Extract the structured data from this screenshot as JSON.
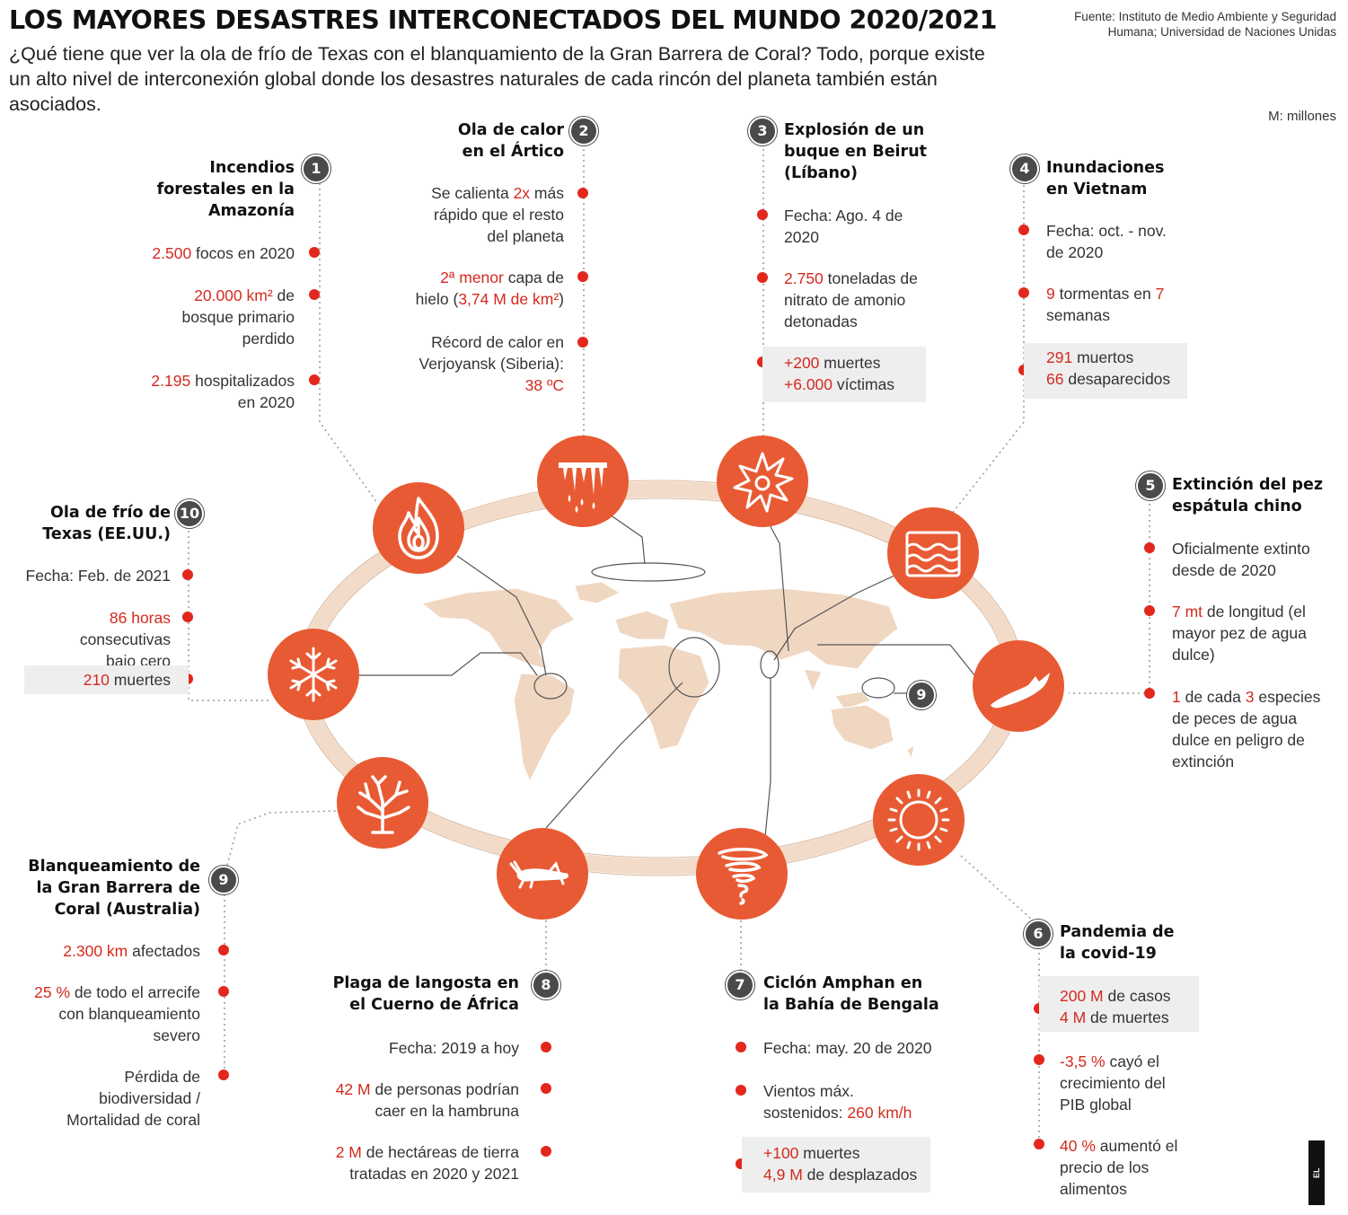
{
  "header": {
    "title": "LOS MAYORES DESASTRES INTERCONECTADOS DEL MUNDO 2020/2021",
    "subtitle": "¿Qué tiene que ver la ola de frío de Texas con el blanquamiento de la Gran Barrera de Coral? Todo, porque existe un alto nivel de interconexión global donde los desastres naturales de cada rincón del planeta también están asociados.",
    "source": "Fuente: Instituto de Medio Ambiente y Seguridad Humana; Universidad de Naciones Unidas",
    "unit_note": "M: millones"
  },
  "colors": {
    "accent": "#e85a33",
    "highlight": "#d42a1e",
    "badge": "#4a4a4a",
    "ring": "#f2dcc9",
    "map": "#f0d7c2"
  },
  "icons": [
    "fire-icon",
    "melting-ice-icon",
    "explosion-icon",
    "waves-icon",
    "fish-icon",
    "virus-icon",
    "tornado-icon",
    "locust-icon",
    "coral-icon",
    "snowflake-icon"
  ],
  "logo_text": "EL ESPECTADOR",
  "disasters": {
    "d1": {
      "num": "1",
      "title1": "Incendios",
      "title2": "forestales en la",
      "title3": "Amazonía",
      "i1_red": "2.500",
      "i1_rest": " focos en 2020",
      "i2_red": "20.000 km²",
      "i2_rest": " de",
      "i2_l2": "bosque primario",
      "i2_l3": "perdido",
      "i3_red": "2.195",
      "i3_rest": " hospitalizados",
      "i3_l2": "en 2020"
    },
    "d2": {
      "num": "2",
      "title1": "Ola de calor",
      "title2": "en el Ártico",
      "i1_a": "Se calienta ",
      "i1_red": "2x",
      "i1_b": " más",
      "i1_l2": "rápido que el resto",
      "i1_l3": "del planeta",
      "i2_red": "2ª menor",
      "i2_rest": " capa de",
      "i2_l2a": "hielo (",
      "i2_l2red": "3,74 M de km²",
      "i2_l2b": ")",
      "i3_l1": "Récord de calor en",
      "i3_l2": "Verjoyansk (Siberia):",
      "i3_red": "38 ºC"
    },
    "d3": {
      "num": "3",
      "title1": "Explosión de un",
      "title2": "buque en Beirut",
      "title3": "(Líbano)",
      "i1_l1": "Fecha: Ago. 4 de",
      "i1_l2": "2020",
      "i2_red": "2.750",
      "i2_rest": " toneladas de",
      "i2_l2": "nitrato de amonio",
      "i2_l3": "detonadas",
      "i3_red": "+200",
      "i3_rest": " muertes",
      "i3b_red": "+6.000",
      "i3b_rest": " víctimas"
    },
    "d4": {
      "num": "4",
      "title1": "Inundaciones",
      "title2": "en Vietnam",
      "i1_l1": "Fecha: oct. - nov.",
      "i1_l2": "de 2020",
      "i2_red": "9",
      "i2_mid": " tormentas en ",
      "i2_red2": "7",
      "i2_l2": "semanas",
      "i3_red": "291",
      "i3_rest": " muertos",
      "i3b_red": "66",
      "i3b_rest": " desaparecidos"
    },
    "d5": {
      "num": "5",
      "title1": "Extinción del pez",
      "title2": "espátula chino",
      "i1_l1": "Oficialmente extinto",
      "i1_l2": "desde de 2020",
      "i2_red": "7 mt",
      "i2_rest": " de longitud (el",
      "i2_l2": "mayor pez de agua",
      "i2_l3": "dulce)",
      "i3_red": "1",
      "i3_mid": " de cada ",
      "i3_red2": "3",
      "i3_rest": " especies",
      "i3_l2": "de peces de agua",
      "i3_l3": "dulce en peligro de",
      "i3_l4": "extinción"
    },
    "d6": {
      "num": "6",
      "title1": "Pandemia de",
      "title2": "la covid-19",
      "i1_red": "200 M",
      "i1_rest": " de casos",
      "i1b_red": "4 M",
      "i1b_rest": " de muertes",
      "i2_red": "-3,5 %",
      "i2_rest": " cayó el",
      "i2_l2": "crecimiento del",
      "i2_l3": "PIB global",
      "i3_red": "40 %",
      "i3_rest": " aumentó el",
      "i3_l2": "precio de los",
      "i3_l3": "alimentos"
    },
    "d7": {
      "num": "7",
      "title1": "Ciclón Amphan en",
      "title2": "la Bahía de Bengala",
      "i1": "Fecha: may. 20 de 2020",
      "i2_l1": "Vientos máx.",
      "i2_a": "sostenidos: ",
      "i2_red": "260 km/h",
      "i3_red": "+100",
      "i3_rest": " muertes",
      "i3b_red": "4,9 M",
      "i3b_rest": " de desplazados"
    },
    "d8": {
      "num": "8",
      "title1": "Plaga de langosta en",
      "title2": "el Cuerno de África",
      "i1": "Fecha: 2019 a hoy",
      "i2_red": "42 M",
      "i2_rest": " de personas podrían",
      "i2_l2": "caer en la hambruna",
      "i3_red": "2 M",
      "i3_rest": " de hectáreas de tierra",
      "i3_l2": "tratadas en 2020 y 2021"
    },
    "d9": {
      "num": "9",
      "title1": "Blanqueamiento de",
      "title2": "la Gran Barrera de",
      "title3": "Coral (Australia)",
      "i1_red": "2.300 km",
      "i1_rest": " afectados",
      "i2_red": "25 %",
      "i2_rest": " de todo el arrecife",
      "i2_l2": "con blanqueamiento",
      "i2_l3": "severo",
      "i3_l1": "Pérdida de",
      "i3_l2": "biodiversidad /",
      "i3_l3": "Mortalidad de coral"
    },
    "d10": {
      "num": "10",
      "title1": "Ola de frío de",
      "title2": "Texas (EE.UU.)",
      "i1": "Fecha: Feb. de 2021",
      "i2_red": "86 horas",
      "i2_rest": " consecutivas",
      "i2_l2": "bajo cero",
      "i3_red": "210",
      "i3_rest": " muertes"
    }
  },
  "map_badge": "9"
}
